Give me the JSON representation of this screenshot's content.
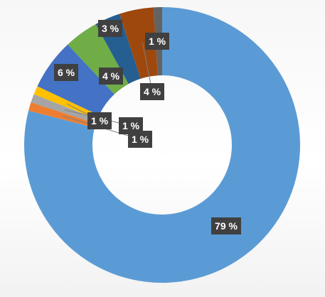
{
  "chart_data": {
    "type": "pie",
    "variant": "doughnut",
    "slices": [
      {
        "label": "79 %",
        "value": 79,
        "color": "#5B9BD5"
      },
      {
        "label": "1 %",
        "value": 1,
        "color": "#ED7D31"
      },
      {
        "label": "1 %",
        "value": 1,
        "color": "#A5A5A5"
      },
      {
        "label": "1 %",
        "value": 1,
        "color": "#FFC000"
      },
      {
        "label": "6 %",
        "value": 6,
        "color": "#4472C4"
      },
      {
        "label": "4 %",
        "value": 4,
        "color": "#70AD47"
      },
      {
        "label": "3 %",
        "value": 3,
        "color": "#255E91"
      },
      {
        "label": "4 %",
        "value": 4,
        "color": "#9E480E"
      },
      {
        "label": "1 %",
        "value": 1,
        "color": "#636363"
      }
    ],
    "legend": "none"
  }
}
